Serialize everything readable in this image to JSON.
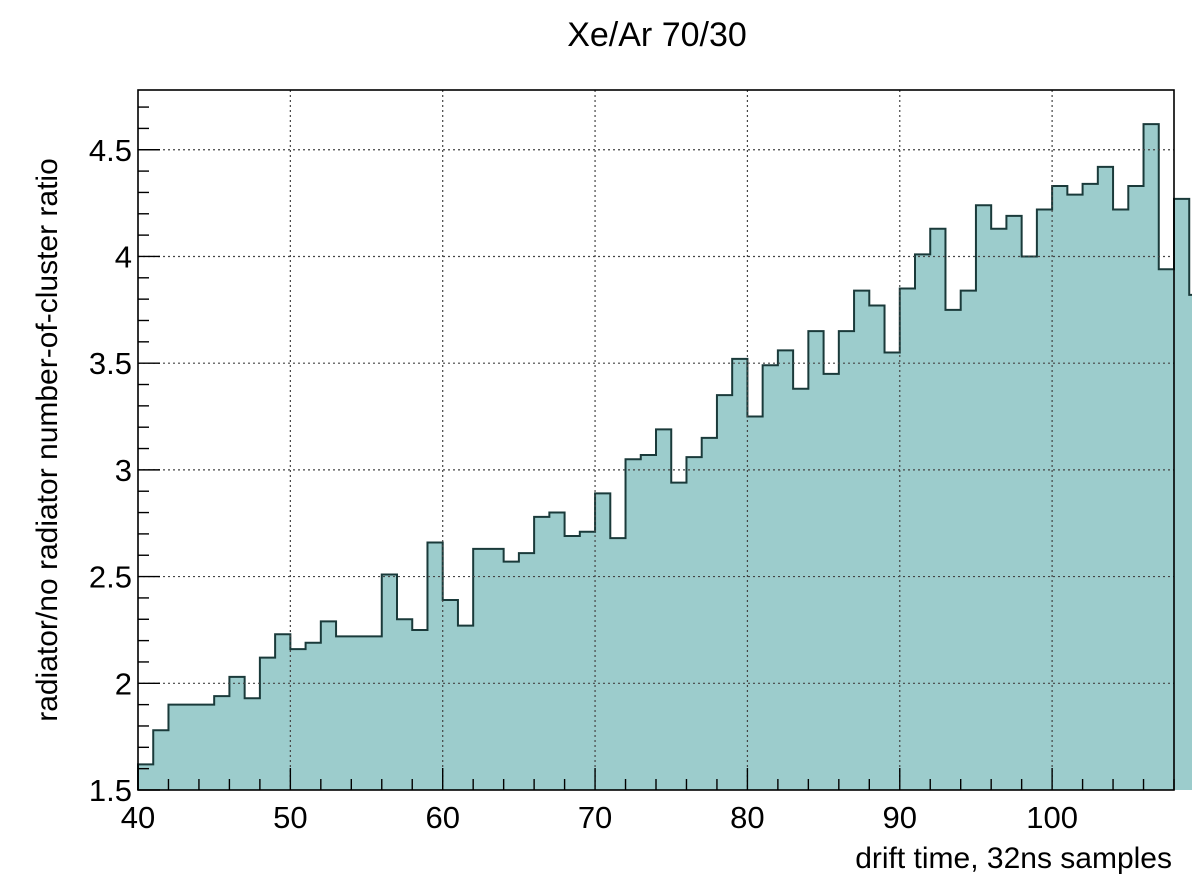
{
  "chart_data": {
    "type": "bar",
    "title": "Xe/Ar 70/30",
    "xlabel": "drift time,  32ns samples",
    "ylabel": "radiator/no radiator number-of-cluster ratio",
    "xlim": [
      40,
      108
    ],
    "ylim": [
      1.5,
      4.78
    ],
    "grid": true,
    "fill_color": "#9ccccc",
    "line_color": "#1a3a3a",
    "x_ticks": [
      {
        "value": 40,
        "label": "40"
      },
      {
        "value": 50,
        "label": "50"
      },
      {
        "value": 60,
        "label": "60"
      },
      {
        "value": 70,
        "label": "70"
      },
      {
        "value": 80,
        "label": "80"
      },
      {
        "value": 90,
        "label": "90"
      },
      {
        "value": 100,
        "label": "100"
      }
    ],
    "y_ticks": [
      {
        "value": 1.5,
        "label": "1.5"
      },
      {
        "value": 2,
        "label": "2"
      },
      {
        "value": 2.5,
        "label": "2.5"
      },
      {
        "value": 3,
        "label": "3"
      },
      {
        "value": 3.5,
        "label": "3.5"
      },
      {
        "value": 4,
        "label": "4"
      },
      {
        "value": 4.5,
        "label": "4.5"
      }
    ],
    "bin_width": 1,
    "bin_start": 40,
    "values": [
      1.62,
      1.78,
      1.9,
      1.9,
      1.9,
      1.94,
      2.03,
      1.93,
      2.12,
      2.23,
      2.16,
      2.19,
      2.29,
      2.22,
      2.22,
      2.22,
      2.51,
      2.3,
      2.25,
      2.66,
      2.39,
      2.27,
      2.63,
      2.63,
      2.57,
      2.61,
      2.78,
      2.8,
      2.69,
      2.71,
      2.89,
      2.68,
      3.05,
      3.07,
      3.19,
      2.94,
      3.06,
      3.15,
      3.35,
      3.52,
      3.25,
      3.49,
      3.56,
      3.38,
      3.65,
      3.45,
      3.65,
      3.84,
      3.77,
      3.55,
      3.85,
      4.01,
      4.13,
      3.75,
      3.84,
      4.24,
      4.13,
      4.19,
      4.0,
      4.22,
      4.33,
      4.29,
      4.34,
      4.42,
      4.22,
      4.33,
      4.62,
      3.94,
      4.27,
      3.82
    ]
  }
}
